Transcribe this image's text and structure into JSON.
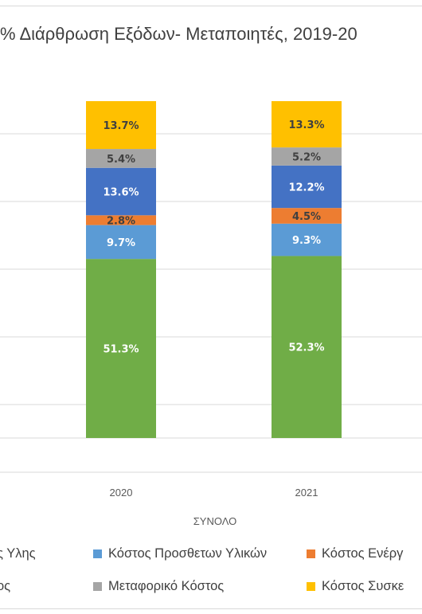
{
  "chart_data": {
    "type": "bar",
    "stacked": true,
    "title": "% Διάρθρωση  Εξόδων- Μεταποιητές, 2019-20",
    "xlabel": "ΣΥΝΟΛΟ",
    "ylabel": "",
    "categories": [
      "2020",
      "2021"
    ],
    "ylim": [
      0,
      100
    ],
    "grid": true,
    "legend_position": "bottom",
    "series": [
      {
        "name": "ς Υλης",
        "color": "#70ad47",
        "values": [
          51.3,
          52.3
        ],
        "labels": [
          "51.3%",
          "52.3%"
        ],
        "label_color": "#ffffff"
      },
      {
        "name": "Κόστος Προσθετων Υλικών",
        "color": "#5b9bd5",
        "values": [
          9.7,
          9.3
        ],
        "labels": [
          "9.7%",
          "9.3%"
        ],
        "label_color": "#ffffff"
      },
      {
        "name": "Κόστος Ενέργ",
        "color": "#ed7d31",
        "values": [
          2.8,
          4.5
        ],
        "labels": [
          "2.8%",
          "4.5%"
        ],
        "label_color": "#404040"
      },
      {
        "name": "ος",
        "color": "#4472c4",
        "values": [
          13.6,
          12.2
        ],
        "labels": [
          "13.6%",
          "12.2%"
        ],
        "label_color": "#ffffff"
      },
      {
        "name": "Μεταφορικό Κόστος",
        "color": "#a5a5a5",
        "values": [
          5.4,
          5.2
        ],
        "labels": [
          "5.4%",
          "5.2%"
        ],
        "label_color": "#404040"
      },
      {
        "name": "Κόστος Συσκε",
        "color": "#ffc000",
        "values": [
          13.7,
          13.3
        ],
        "labels": [
          "13.7%",
          "13.3%"
        ],
        "label_color": "#404040"
      }
    ]
  }
}
